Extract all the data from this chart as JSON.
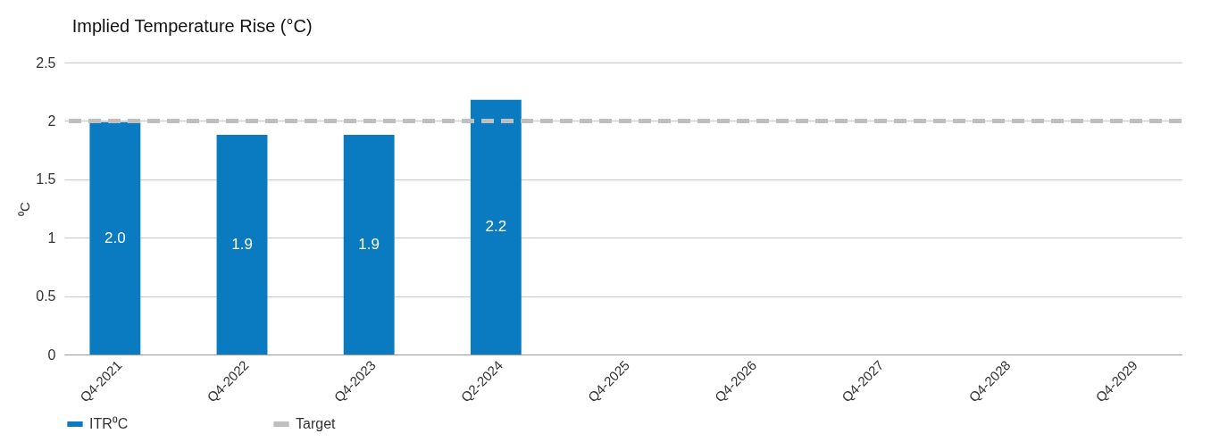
{
  "chart_data": {
    "type": "bar",
    "title": "Implied Temperature Rise (°C)",
    "ylabel": "⁰C",
    "categories": [
      "Q4-2021",
      "Q4-2022",
      "Q4-2023",
      "Q2-2024",
      "Q4-2025",
      "Q4-2026",
      "Q4-2027",
      "Q4-2028",
      "Q4-2029"
    ],
    "series": [
      {
        "name": "ITR⁰C",
        "color": "#0a7bc1",
        "values": [
          1.99,
          1.88,
          1.88,
          2.18,
          null,
          null,
          null,
          null,
          null
        ],
        "value_labels": [
          "2.0",
          "1.9",
          "1.9",
          "2.2",
          null,
          null,
          null,
          null,
          null
        ]
      }
    ],
    "ref_lines": [
      {
        "axis": "y",
        "value": 2,
        "label": "Target",
        "color": "#bfbfbf",
        "line_style": "dashed"
      }
    ],
    "ylim": [
      0,
      2.5
    ],
    "yticks": [
      0,
      0.5,
      1,
      1.5,
      2,
      2.5
    ],
    "grid": "y",
    "legend": "bottom"
  }
}
